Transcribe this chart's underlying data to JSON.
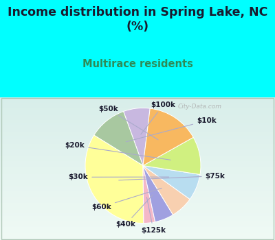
{
  "title": "Income distribution in Spring Lake, NC\n(%)",
  "subtitle": "Multirace residents",
  "title_color": "#1a1a2e",
  "subtitle_color": "#2e8b57",
  "bg_cyan": "#00ffff",
  "bg_chart": "#e0f0e8",
  "labels": [
    "$100k",
    "$10k",
    "$75k",
    "$125k",
    "$40k",
    "$60k",
    "$30k",
    "$20k",
    "$50k"
  ],
  "values": [
    7,
    10,
    32,
    3,
    5,
    6,
    7,
    10,
    14
  ],
  "colors": [
    "#c8b8e0",
    "#a8c8a0",
    "#ffff99",
    "#f4b8c8",
    "#a0a0e0",
    "#f8d0b0",
    "#b8ddf0",
    "#d0f080",
    "#f8b860"
  ],
  "startangle": 83,
  "watermark": "City-Data.com"
}
